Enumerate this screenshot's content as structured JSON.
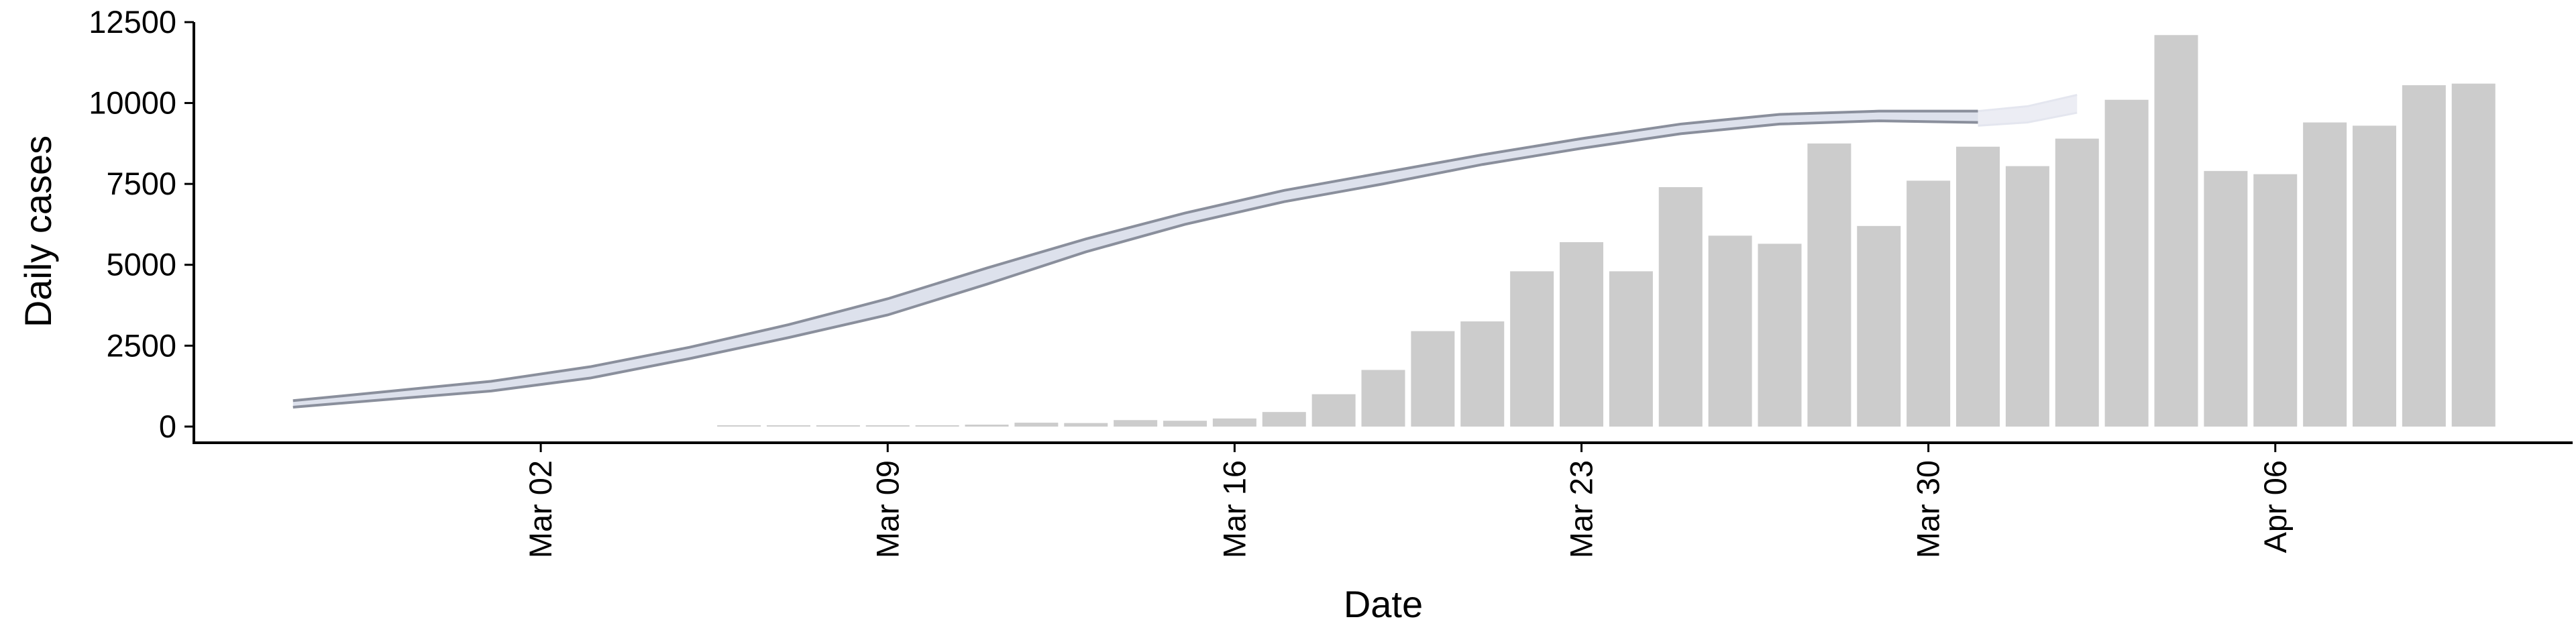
{
  "chart_data": {
    "type": "bar",
    "xlabel": "Date",
    "ylabel": "Daily cases",
    "ylim": [
      -500,
      12500
    ],
    "yticks": [
      0,
      2500,
      5000,
      7500,
      10000,
      12500
    ],
    "xticks": [
      {
        "date": "2020-03-02",
        "label": "Mar 02"
      },
      {
        "date": "2020-03-09",
        "label": "Mar 09"
      },
      {
        "date": "2020-03-16",
        "label": "Mar 16"
      },
      {
        "date": "2020-03-23",
        "label": "Mar 23"
      },
      {
        "date": "2020-03-30",
        "label": "Mar 30"
      },
      {
        "date": "2020-04-06",
        "label": "Apr 06"
      }
    ],
    "xlim": [
      "2020-02-24",
      "2020-04-12"
    ],
    "grid": false,
    "legend": "none",
    "bars": {
      "color": "#cccccc",
      "dates": [
        "2020-03-06",
        "2020-03-07",
        "2020-03-08",
        "2020-03-09",
        "2020-03-10",
        "2020-03-11",
        "2020-03-12",
        "2020-03-13",
        "2020-03-14",
        "2020-03-15",
        "2020-03-16",
        "2020-03-17",
        "2020-03-18",
        "2020-03-19",
        "2020-03-20",
        "2020-03-21",
        "2020-03-22",
        "2020-03-23",
        "2020-03-24",
        "2020-03-25",
        "2020-03-26",
        "2020-03-27",
        "2020-03-28",
        "2020-03-29",
        "2020-03-30",
        "2020-03-31",
        "2020-04-01",
        "2020-04-02",
        "2020-04-03",
        "2020-04-04",
        "2020-04-05",
        "2020-04-06",
        "2020-04-07",
        "2020-04-08",
        "2020-04-09",
        "2020-04-10"
      ],
      "values": [
        5,
        10,
        20,
        30,
        40,
        60,
        120,
        110,
        200,
        180,
        250,
        450,
        1000,
        1750,
        2950,
        3250,
        4800,
        5700,
        4800,
        7400,
        5900,
        5650,
        8750,
        6200,
        7600,
        8650,
        8050,
        8900,
        10100,
        12100,
        7900,
        7800,
        9400,
        9300,
        10550,
        10600
      ]
    },
    "series": [
      {
        "role": "model-fit-band",
        "color": "#8a8f9c",
        "fill": "#dde1ec",
        "dates": [
          "2020-02-26",
          "2020-02-28",
          "2020-03-01",
          "2020-03-03",
          "2020-03-05",
          "2020-03-07",
          "2020-03-09",
          "2020-03-11",
          "2020-03-13",
          "2020-03-15",
          "2020-03-17",
          "2020-03-19",
          "2020-03-21",
          "2020-03-23",
          "2020-03-25",
          "2020-03-27",
          "2020-03-29",
          "2020-03-31"
        ],
        "upper": [
          800,
          1100,
          1400,
          1850,
          2450,
          3150,
          3950,
          4900,
          5800,
          6600,
          7300,
          7850,
          8400,
          8900,
          9350,
          9650,
          9750,
          9750
        ],
        "lower": [
          600,
          850,
          1100,
          1500,
          2100,
          2750,
          3450,
          4400,
          5400,
          6250,
          6950,
          7500,
          8100,
          8600,
          9050,
          9350,
          9450,
          9400
        ]
      },
      {
        "role": "projection-fan",
        "color": "#e4e6ef",
        "dates": [
          "2020-03-31",
          "2020-04-01",
          "2020-04-02"
        ],
        "upper": [
          9750,
          9900,
          10250
        ],
        "lower": [
          9300,
          9400,
          9700
        ]
      }
    ]
  }
}
